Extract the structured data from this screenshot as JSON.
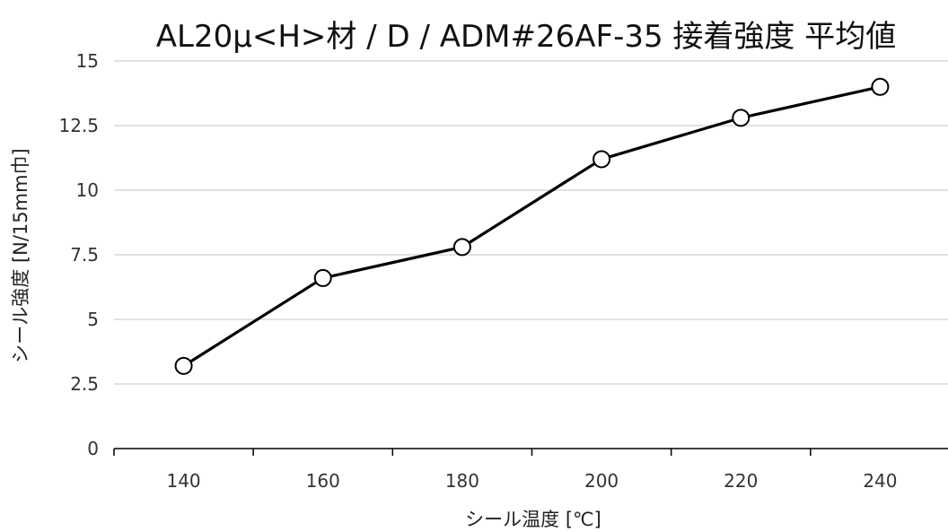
{
  "chart_data": {
    "type": "line",
    "title": "AL20μ<H>材 / D / ADM#26AF-35 接着強度 平均値",
    "xlabel": "シール温度 [℃]",
    "ylabel": "シール強度 [N/15mm巾]",
    "x": [
      140,
      160,
      180,
      200,
      220,
      240
    ],
    "series": [
      {
        "values": [
          3.2,
          6.6,
          7.8,
          11.2,
          12.8,
          14.0
        ]
      }
    ],
    "xlim": [
      130,
      250
    ],
    "ylim": [
      0,
      15
    ],
    "yticks": [
      0,
      2.5,
      5,
      7.5,
      10,
      12.5,
      15
    ],
    "ytick_labels": [
      "0",
      "2.5",
      "5",
      "7.5",
      "10",
      "12.5",
      "15"
    ],
    "xticks": [
      140,
      160,
      180,
      200,
      220,
      240
    ],
    "xtick_labels": [
      "140",
      "160",
      "180",
      "200",
      "220",
      "240"
    ],
    "grid": "horizontal",
    "legend": "none",
    "colors": {
      "line": "#000000",
      "marker_fill": "#ffffff",
      "grid": "#d9d9d9",
      "axis": "#000000"
    }
  }
}
